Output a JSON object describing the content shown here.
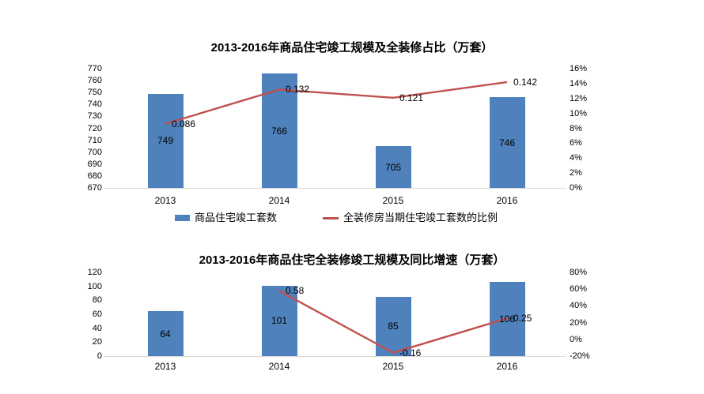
{
  "colors": {
    "bar": "#4f81bd",
    "line": "#c0504d",
    "axis_line": "#d9d9d9",
    "text": "#000000",
    "background": "#ffffff"
  },
  "chart_data": [
    {
      "type": "bar+line",
      "title": "2013-2016年商品住宅竣工规模及全装修占比（万套）",
      "categories": [
        "2013",
        "2014",
        "2015",
        "2016"
      ],
      "series": [
        {
          "name": "商品住宅竣工套数",
          "type": "bar",
          "axis": "left",
          "values": [
            749,
            766,
            705,
            746
          ],
          "labels": [
            "749",
            "766",
            "705",
            "746"
          ],
          "color": "#4f81bd"
        },
        {
          "name": "全装修房当期住宅竣工套数的比例",
          "type": "line",
          "axis": "right",
          "values": [
            0.086,
            0.132,
            0.121,
            0.142
          ],
          "labels": [
            "0.086",
            "0.132",
            "0.121",
            "0.142"
          ],
          "color": "#c0504d"
        }
      ],
      "left_axis": {
        "min": 670,
        "max": 770,
        "ticks": [
          "670",
          "680",
          "690",
          "700",
          "710",
          "720",
          "730",
          "740",
          "750",
          "760",
          "770"
        ]
      },
      "right_axis": {
        "min": 0,
        "max": 0.16,
        "ticks": [
          "0%",
          "2%",
          "4%",
          "6%",
          "8%",
          "10%",
          "12%",
          "14%",
          "16%"
        ]
      },
      "legend": [
        "商品住宅竣工套数",
        "全装修房当期住宅竣工套数的比例"
      ],
      "legend_position": "bottom",
      "grid": false
    },
    {
      "type": "bar+line",
      "title": "2013-2016年商品住宅全装修竣工规模及同比增速（万套）",
      "categories": [
        "2013",
        "2014",
        "2015",
        "2016"
      ],
      "series": [
        {
          "name": "",
          "type": "bar",
          "axis": "left",
          "values": [
            64,
            101,
            85,
            106
          ],
          "labels": [
            "64",
            "101",
            "85",
            "106"
          ],
          "color": "#4f81bd"
        },
        {
          "name": "",
          "type": "line",
          "axis": "right",
          "values": [
            null,
            0.58,
            -0.16,
            0.25
          ],
          "labels": [
            "",
            "0.58",
            "-0.16",
            "0.25"
          ],
          "color": "#c0504d"
        }
      ],
      "left_axis": {
        "min": 0,
        "max": 120,
        "ticks": [
          "0",
          "20",
          "40",
          "60",
          "80",
          "100",
          "120"
        ]
      },
      "right_axis": {
        "min": -0.2,
        "max": 0.8,
        "ticks": [
          "-20%",
          "0%",
          "20%",
          "40%",
          "60%",
          "80%"
        ]
      },
      "legend": null,
      "legend_position": "none",
      "grid": false
    }
  ]
}
